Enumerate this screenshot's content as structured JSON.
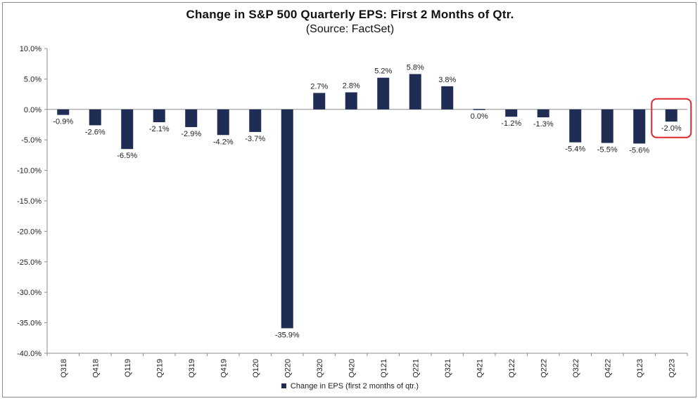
{
  "chart_data": {
    "type": "bar",
    "title": "Change in S&P 500 Quarterly EPS: First 2 Months of Qtr.",
    "subtitle": "(Source: FactSet)",
    "categories": [
      "Q318",
      "Q418",
      "Q119",
      "Q219",
      "Q319",
      "Q419",
      "Q120",
      "Q220",
      "Q320",
      "Q420",
      "Q121",
      "Q221",
      "Q321",
      "Q421",
      "Q122",
      "Q222",
      "Q322",
      "Q422",
      "Q123",
      "Q223"
    ],
    "series": [
      {
        "name": "Change in EPS (first 2 months of qtr.)",
        "values": [
          -0.9,
          -2.6,
          -6.5,
          -2.1,
          -2.9,
          -4.2,
          -3.7,
          -35.9,
          2.7,
          2.8,
          5.2,
          5.8,
          3.8,
          0.0,
          -1.2,
          -1.3,
          -5.4,
          -5.5,
          -5.6,
          -2.0
        ],
        "data_labels": [
          "-0.9%",
          "-2.6%",
          "-6.5%",
          "-2.1%",
          "-2.9%",
          "-4.2%",
          "-3.7%",
          "-35.9%",
          "2.7%",
          "2.8%",
          "5.2%",
          "5.8%",
          "3.8%",
          "0.0%",
          "-1.2%",
          "-1.3%",
          "-5.4%",
          "-5.5%",
          "-5.6%",
          "-2.0%"
        ],
        "color": "#1f2d55"
      }
    ],
    "ylim": [
      -40,
      10
    ],
    "yticks": [
      10,
      5,
      0,
      -5,
      -10,
      -15,
      -20,
      -25,
      -30,
      -35,
      -40
    ],
    "ytick_labels": [
      "10.0%",
      "5.0%",
      "0.0%",
      "-5.0%",
      "-10.0%",
      "-15.0%",
      "-20.0%",
      "-25.0%",
      "-30.0%",
      "-35.0%",
      "-40.0%"
    ],
    "grid": false,
    "legend_position": "bottom",
    "highlight": {
      "category": "Q223",
      "color": "#e0262b"
    }
  }
}
